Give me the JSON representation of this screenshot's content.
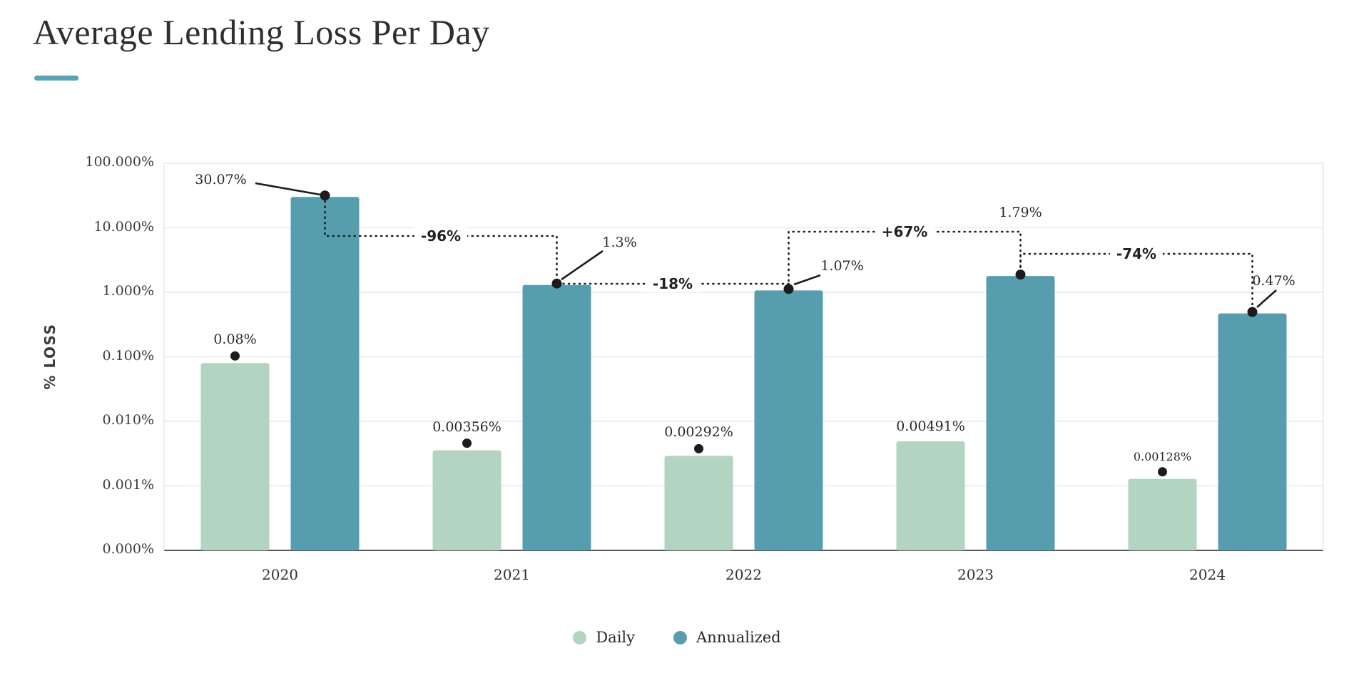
{
  "chart_data": {
    "type": "bar",
    "title": "Average Lending Loss Per Day",
    "ylabel": "% LOSS",
    "y_scale": "log",
    "y_ticks": [
      "100.000%",
      "10.000%",
      "1.000%",
      "0.100%",
      "0.010%",
      "0.001%",
      "0.000%"
    ],
    "y_range_log10": [
      -4,
      2
    ],
    "categories": [
      "2020",
      "2021",
      "2022",
      "2023",
      "2024"
    ],
    "series": [
      {
        "name": "Daily",
        "color": "#b2d4c1",
        "values": [
          0.08,
          0.00356,
          0.00292,
          0.00491,
          0.00128
        ],
        "labels": [
          "0.08%",
          "0.00356%",
          "0.00292%",
          "0.00491%",
          "0.00128%"
        ],
        "markers": [
          true,
          true,
          true,
          false,
          true
        ]
      },
      {
        "name": "Annualized",
        "color": "#569eae",
        "values": [
          30.07,
          1.3,
          1.07,
          1.79,
          0.47
        ],
        "labels": [
          "30.07%",
          "1.3%",
          "1.07%",
          "1.79%",
          "0.47%"
        ],
        "markers": [
          true,
          true,
          true,
          true,
          true
        ]
      }
    ],
    "annotations": [
      {
        "label": "-96%",
        "from": "2020",
        "to": "2021"
      },
      {
        "label": "-18%",
        "from": "2021",
        "to": "2022"
      },
      {
        "label": "+67%",
        "from": "2022",
        "to": "2023"
      },
      {
        "label": "-74%",
        "from": "2023",
        "to": "2024"
      }
    ],
    "legend": [
      {
        "label": "Daily",
        "color": "#b2d4c1"
      },
      {
        "label": "Annualized",
        "color": "#569eae"
      }
    ],
    "colors": {
      "accent": "#56a4b4",
      "marker": "#1c1c1c",
      "grid": "#e9e9e9",
      "axis": "#50555a"
    },
    "grid": true,
    "legend_position": "bottom"
  }
}
